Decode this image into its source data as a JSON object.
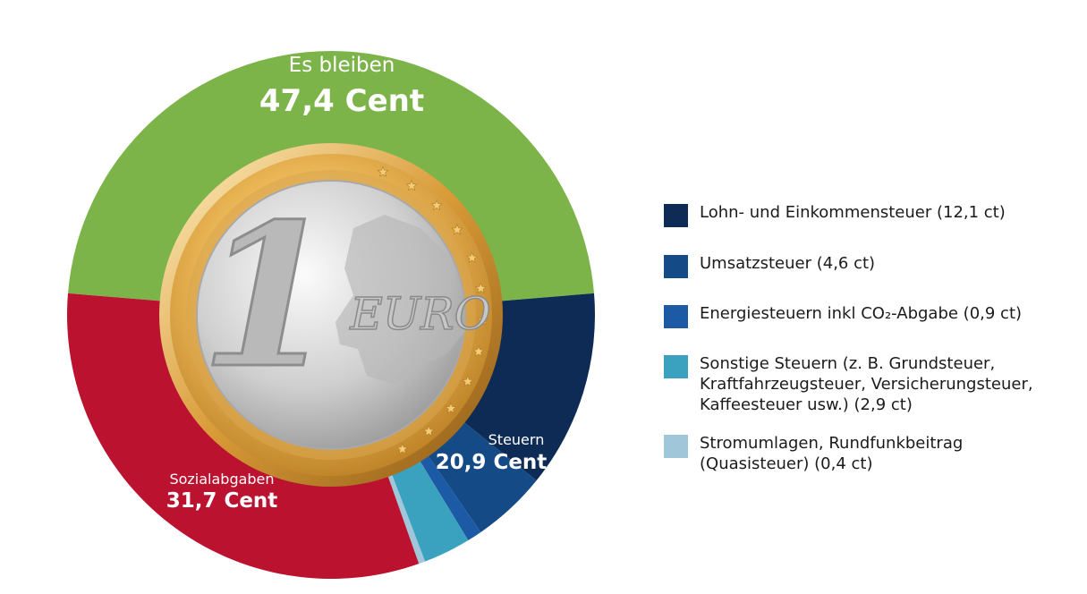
{
  "chart_data": {
    "type": "donut",
    "unit": "Cent",
    "outer_groups": [
      {
        "name": "Es bleiben",
        "value": 47.4,
        "value_label": "47,4 Cent",
        "color": "#7cb44a"
      },
      {
        "name": "Steuern",
        "value": 20.9,
        "value_label": "20,9 Cent",
        "color": "#0d335e"
      },
      {
        "name": "Sozialabgaben",
        "value": 31.7,
        "value_label": "31,7 Cent",
        "color": "#bb1230"
      }
    ],
    "tax_breakdown": [
      {
        "label": "Lohn- und Einkommensteuer (12,1 ct)",
        "value": 12.1,
        "color": "#0d2b55"
      },
      {
        "label": "Umsatzsteuer (4,6 ct)",
        "value": 4.6,
        "color": "#144a85"
      },
      {
        "label": "Energiesteuern inkl CO₂-Abgabe (0,9 ct)",
        "value": 0.9,
        "color": "#1d5aa5"
      },
      {
        "label": "Sonstige Steuern (z. B. Grundsteuer, Kraftfahrzeugsteuer, Versicherungsteuer, Kaffeesteuer usw.) (2,9 ct)",
        "value": 2.9,
        "color": "#3aa2bf"
      },
      {
        "label": "Stromumlagen, Rundfunkbeitrag (Quasisteuer) (0,4 ct)",
        "value": 0.4,
        "color": "#9fc6d9"
      }
    ]
  },
  "coin": {
    "numeral": "1",
    "text": "EURO"
  }
}
